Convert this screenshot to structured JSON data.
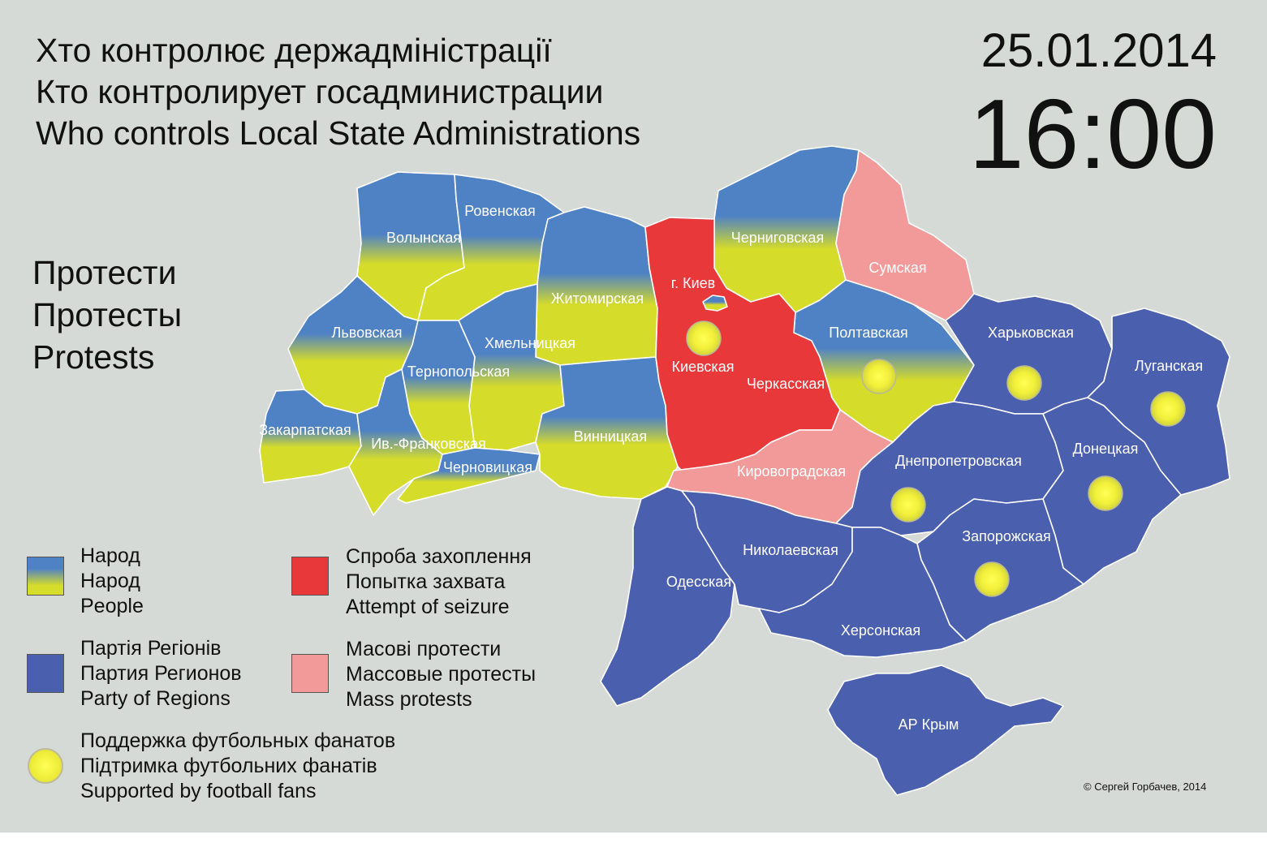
{
  "title": {
    "line_uk": "Хто контролює держадміністрації",
    "line_ru": "Кто контролирует  госадминистрации",
    "line_en": "Who controls Local State Administrations"
  },
  "date": "25.01.2014",
  "time": "16:00",
  "protests_heading": {
    "uk": "Протести",
    "ru": "Протесты",
    "en": "Protests"
  },
  "colors": {
    "people_top": "#4f82c4",
    "people_bottom": "#d6dc2a",
    "party_of_regions": "#4a5fad",
    "attempt_of_seizure": "#e8383a",
    "mass_protests": "#f29a9a",
    "fans": "#f4f23c",
    "background": "#d6dad6"
  },
  "legend": {
    "people": {
      "uk": "Народ",
      "ru": "Народ",
      "en": "People"
    },
    "attempt": {
      "uk": "Спроба захоплення",
      "ru": "Попытка захвата",
      "en": "Attempt of seizure"
    },
    "regions": {
      "uk": "Партія Регіонів",
      "ru": "Партия Регионов",
      "en": "Party of Regions"
    },
    "mass": {
      "uk": "Масові протести",
      "ru": "Массовые протесты",
      "en": "Mass protests"
    },
    "fans": {
      "ru": "Поддержка футбольных фанатов",
      "uk": "Підтримка футбольних фанатів",
      "en": "Supported by football fans"
    }
  },
  "regions": [
    {
      "name": "Волынская",
      "status": "people",
      "fans": false
    },
    {
      "name": "Ровенская",
      "status": "people",
      "fans": false
    },
    {
      "name": "Львовская",
      "status": "people",
      "fans": false
    },
    {
      "name": "Житомирская",
      "status": "people",
      "fans": false
    },
    {
      "name": "Хмельницкая",
      "status": "people",
      "fans": false
    },
    {
      "name": "Тернопольская",
      "status": "people",
      "fans": false
    },
    {
      "name": "Закарпатская",
      "status": "people",
      "fans": false
    },
    {
      "name": "Ив.-Франковская",
      "status": "people",
      "fans": false
    },
    {
      "name": "Черновицкая",
      "status": "people",
      "fans": false
    },
    {
      "name": "Винницкая",
      "status": "people",
      "fans": false
    },
    {
      "name": "Черниговская",
      "status": "people",
      "fans": false
    },
    {
      "name": "Полтавская",
      "status": "people",
      "fans": true
    },
    {
      "name": "г. Киев",
      "status": "attempt",
      "fans": false
    },
    {
      "name": "Киевская",
      "status": "attempt",
      "fans": true
    },
    {
      "name": "Черкасская",
      "status": "attempt",
      "fans": false
    },
    {
      "name": "Сумская",
      "status": "mass",
      "fans": false
    },
    {
      "name": "Кировоградская",
      "status": "mass",
      "fans": false
    },
    {
      "name": "Харьковская",
      "status": "regions",
      "fans": true
    },
    {
      "name": "Луганская",
      "status": "regions",
      "fans": true
    },
    {
      "name": "Днепропетровская",
      "status": "regions",
      "fans": true
    },
    {
      "name": "Донецкая",
      "status": "regions",
      "fans": true
    },
    {
      "name": "Запорожская",
      "status": "regions",
      "fans": true
    },
    {
      "name": "Одесская",
      "status": "regions",
      "fans": false
    },
    {
      "name": "Николаевская",
      "status": "regions",
      "fans": false
    },
    {
      "name": "Херсонская",
      "status": "regions",
      "fans": false
    },
    {
      "name": "АР Крым",
      "status": "regions",
      "fans": false
    }
  ],
  "copyright": "© Сергей Горбачев, 2014"
}
